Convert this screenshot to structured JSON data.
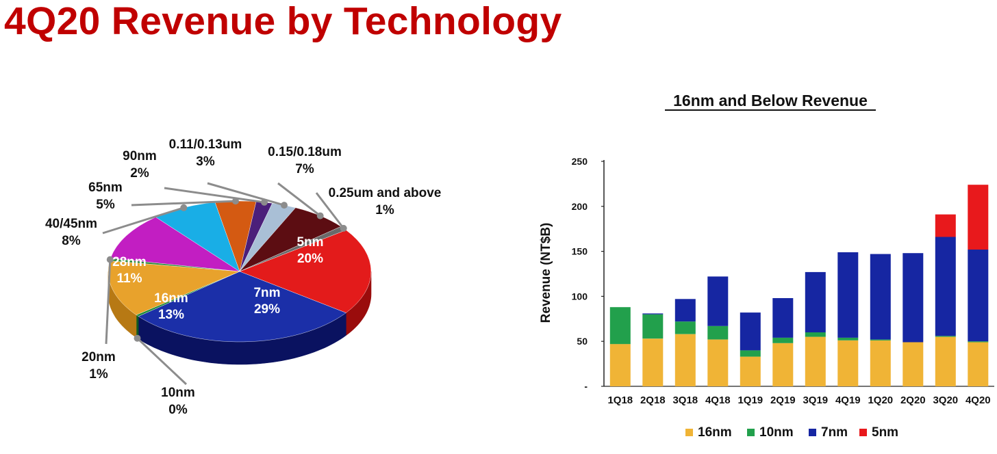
{
  "page": {
    "title": "4Q20 Revenue by Technology"
  },
  "chart_data": [
    {
      "type": "pie",
      "title": "",
      "slices": [
        {
          "label": "5nm",
          "value": 20,
          "pct": "20%",
          "color": "#e31b1b",
          "side": "#9a0c0c"
        },
        {
          "label": "7nm",
          "value": 29,
          "pct": "29%",
          "color": "#1b2fa8",
          "side": "#0a1260"
        },
        {
          "label": "10nm",
          "value": 0.4,
          "pct": "0%",
          "color": "#1d8a3a",
          "side": "#0f5a22"
        },
        {
          "label": "16nm",
          "value": 13,
          "pct": "13%",
          "color": "#e8a22c",
          "side": "#b77914"
        },
        {
          "label": "20nm",
          "value": 0.6,
          "pct": "1%",
          "color": "#2f8c3c",
          "side": "#1a5e24"
        },
        {
          "label": "28nm",
          "value": 11,
          "pct": "11%",
          "color": "#c21ec2",
          "side": "#8a128a"
        },
        {
          "label": "40/45nm",
          "value": 8,
          "pct": "8%",
          "color": "#19aee6",
          "side": "#0f7aa5"
        },
        {
          "label": "65nm",
          "value": 5,
          "pct": "5%",
          "color": "#d45a12",
          "side": "#944008"
        },
        {
          "label": "90nm",
          "value": 2,
          "pct": "2%",
          "color": "#4b1f7a",
          "side": "#2e0f50"
        },
        {
          "label": "0.11/0.13um",
          "value": 3,
          "pct": "3%",
          "color": "#a9bfd6",
          "side": "#7a91a8"
        },
        {
          "label": "0.15/0.18um",
          "value": 7,
          "pct": "7%",
          "color": "#5c0d12",
          "side": "#3a070a"
        },
        {
          "label": "0.25um and above",
          "value": 1,
          "pct": "1%",
          "color": "#6a6a6a",
          "side": "#444444"
        }
      ]
    },
    {
      "type": "bar",
      "stacked": true,
      "title": "16nm and Below Revenue",
      "xlabel": "",
      "ylabel": "Revenue (NT$B)",
      "ylim": [
        0,
        250
      ],
      "yticks": [
        "-",
        "50",
        "100",
        "150",
        "200",
        "250"
      ],
      "categories": [
        "1Q18",
        "2Q18",
        "3Q18",
        "4Q18",
        "1Q19",
        "2Q19",
        "3Q19",
        "4Q19",
        "1Q20",
        "2Q20",
        "3Q20",
        "4Q20"
      ],
      "series": [
        {
          "name": "16nm",
          "color": "#f0b436",
          "values": [
            47,
            53,
            58,
            52,
            33,
            48,
            55,
            51,
            51,
            49,
            55,
            49
          ]
        },
        {
          "name": "10nm",
          "color": "#22a04c",
          "values": [
            41,
            27,
            14,
            15,
            7,
            6,
            5,
            3,
            1,
            0,
            1,
            1
          ]
        },
        {
          "name": "7nm",
          "color": "#1626a2",
          "values": [
            0,
            1,
            25,
            55,
            42,
            44,
            67,
            95,
            95,
            99,
            110,
            102
          ]
        },
        {
          "name": "5nm",
          "color": "#e8191c",
          "values": [
            0,
            0,
            0,
            0,
            0,
            0,
            0,
            0,
            0,
            0,
            25,
            72
          ]
        }
      ],
      "legend": "bottom"
    }
  ]
}
